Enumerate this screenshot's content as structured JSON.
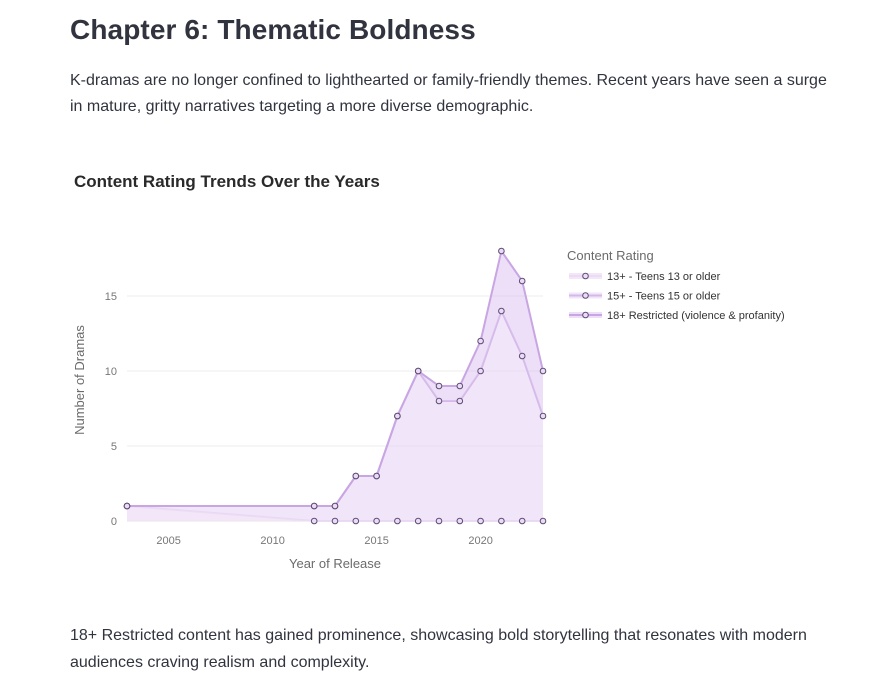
{
  "page": {
    "heading": "Chapter 6: Thematic Boldness",
    "intro": "K-dramas are no longer confined to lighthearted or family-friendly themes. Recent years have seen a surge in mature, gritty narratives targeting a more diverse demographic.",
    "outro": "18+ Restricted content has gained prominence, showcasing bold storytelling that resonates with modern audiences craving realism and complexity."
  },
  "colors": {
    "teen13_line": "#ecdcf3",
    "teen13_fill": "rgba(241,226,247,0.85)",
    "teen15_line": "#d5b8e8",
    "teen15_fill": "rgba(232,214,245,0.6)",
    "adult18_line": "#c9a6e3",
    "adult18_fill": "rgba(220,196,240,0.55)",
    "marker_edge": "#5e4a75",
    "marker_fill": "#e9dcf4"
  },
  "chart_data": {
    "type": "area",
    "stacked": true,
    "title": "Content Rating Trends Over the Years",
    "xlabel": "Year of Release",
    "ylabel": "Number of Dramas",
    "xlim": [
      2003,
      2023
    ],
    "ylim": [
      0,
      19
    ],
    "x_ticks": [
      "2005",
      "2010",
      "2015",
      "2020"
    ],
    "y_ticks": [
      "0",
      "5",
      "10",
      "15"
    ],
    "grid": true,
    "legend_title": "Content Rating",
    "legend_position": "top-right",
    "x": [
      2003,
      2012,
      2013,
      2014,
      2015,
      2016,
      2017,
      2018,
      2019,
      2020,
      2021,
      2022,
      2023
    ],
    "series": [
      {
        "name": "13+ - Teens 13 or older",
        "values": [
          1,
          0,
          0,
          0,
          0,
          0,
          0,
          0,
          0,
          0,
          0,
          0,
          0
        ]
      },
      {
        "name": "15+ - Teens 15 or older",
        "values": [
          0,
          1,
          1,
          3,
          3,
          7,
          10,
          8,
          8,
          10,
          14,
          11,
          7
        ]
      },
      {
        "name": "18+ Restricted (violence & profanity)",
        "values": [
          0,
          0,
          0,
          0,
          0,
          0,
          0,
          1,
          1,
          2,
          4,
          5,
          3
        ]
      }
    ]
  }
}
